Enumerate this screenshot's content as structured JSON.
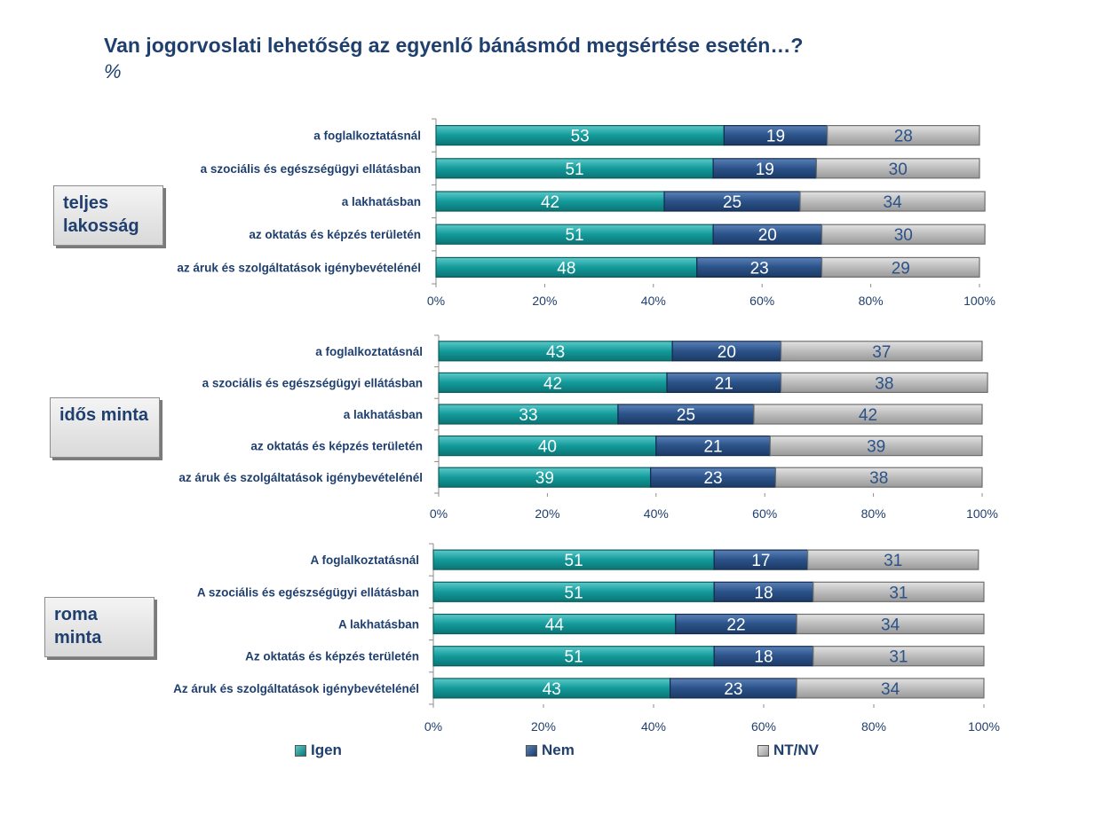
{
  "title": "Van jogorvoslati lehetőség az egyenlő bánásmód megsértése esetén…?",
  "subtitle": "%",
  "colors": {
    "igen": "#139a9a",
    "nem": "#2b5288",
    "ntnv": "#bcbcbc",
    "text": "#1f3f6e"
  },
  "legend": [
    {
      "key": "igen",
      "label": "Igen"
    },
    {
      "key": "nem",
      "label": "Nem"
    },
    {
      "key": "ntnv",
      "label": "NT/NV"
    }
  ],
  "chart_data": [
    {
      "type": "bar",
      "stacked": true,
      "orientation": "horizontal",
      "group_label": "teljes lakosság",
      "categories": [
        "a foglalkoztatásnál",
        "a szociális és egészségügyi ellátásban",
        "a lakhatásban",
        "az oktatás és képzés területén",
        "az áruk és szolgáltatások igénybevételénél"
      ],
      "series": [
        {
          "name": "Igen",
          "values": [
            53,
            51,
            42,
            51,
            48
          ]
        },
        {
          "name": "Nem",
          "values": [
            19,
            19,
            25,
            20,
            23
          ]
        },
        {
          "name": "NT/NV",
          "values": [
            28,
            30,
            34,
            30,
            29
          ]
        }
      ],
      "xlim": [
        0,
        100
      ],
      "xticks": [
        "0%",
        "20%",
        "40%",
        "60%",
        "80%",
        "100%"
      ]
    },
    {
      "type": "bar",
      "stacked": true,
      "orientation": "horizontal",
      "group_label": "idős minta",
      "categories": [
        "a foglalkoztatásnál",
        "a szociális és egészségügyi ellátásban",
        "a lakhatásban",
        "az oktatás és képzés területén",
        "az áruk és szolgáltatások igénybevételénél"
      ],
      "series": [
        {
          "name": "Igen",
          "values": [
            43,
            42,
            33,
            40,
            39
          ]
        },
        {
          "name": "Nem",
          "values": [
            20,
            21,
            25,
            21,
            23
          ]
        },
        {
          "name": "NT/NV",
          "values": [
            37,
            38,
            42,
            39,
            38
          ]
        }
      ],
      "xlim": [
        0,
        100
      ],
      "xticks": [
        "0%",
        "20%",
        "40%",
        "60%",
        "80%",
        "100%"
      ]
    },
    {
      "type": "bar",
      "stacked": true,
      "orientation": "horizontal",
      "group_label": "roma minta",
      "categories": [
        "A foglalkoztatásnál",
        "A szociális és egészségügyi ellátásban",
        "A lakhatásban",
        "Az oktatás és képzés területén",
        "Az áruk és szolgáltatások igénybevételénél"
      ],
      "series": [
        {
          "name": "Igen",
          "values": [
            51,
            51,
            44,
            51,
            43
          ]
        },
        {
          "name": "Nem",
          "values": [
            17,
            18,
            22,
            18,
            23
          ]
        },
        {
          "name": "NT/NV",
          "values": [
            31,
            31,
            34,
            31,
            34
          ]
        }
      ],
      "xlim": [
        0,
        100
      ],
      "xticks": [
        "0%",
        "20%",
        "40%",
        "60%",
        "80%",
        "100%"
      ]
    }
  ]
}
